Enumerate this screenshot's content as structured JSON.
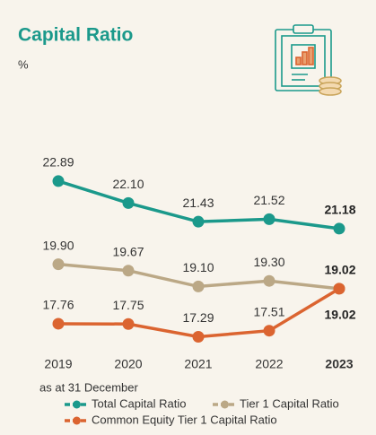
{
  "chart_data": {
    "type": "line",
    "title": "Capital Ratio",
    "subtitle": "%",
    "note": "as at 31 December",
    "categories": [
      "2019",
      "2020",
      "2021",
      "2022",
      "2023"
    ],
    "ylim": [
      16.5,
      23.5
    ],
    "series": [
      {
        "name": "Total Capital Ratio",
        "color": "#1b998b",
        "values": [
          22.89,
          22.1,
          21.43,
          21.52,
          21.18
        ],
        "value_labels": [
          "22.89",
          "22.10",
          "21.43",
          "21.52",
          "21.18"
        ]
      },
      {
        "name": "Tier 1 Capital Ratio",
        "color": "#bba886",
        "values": [
          19.9,
          19.67,
          19.1,
          19.3,
          19.02
        ],
        "value_labels": [
          "19.90",
          "19.67",
          "19.10",
          "19.30",
          "19.02"
        ]
      },
      {
        "name": "Common Equity Tier 1 Capital Ratio",
        "color": "#db6430",
        "values": [
          17.76,
          17.75,
          17.29,
          17.51,
          19.02
        ],
        "value_labels": [
          "17.76",
          "17.75",
          "17.29",
          "17.51",
          "19.02"
        ]
      }
    ]
  }
}
